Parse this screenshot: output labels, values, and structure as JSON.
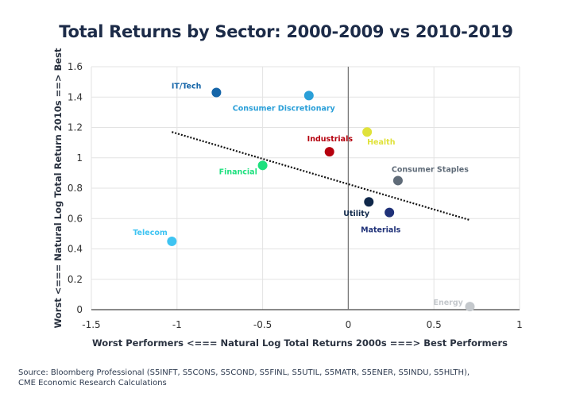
{
  "chart_data": {
    "type": "scatter",
    "title": "Total Returns by Sector: 2000-2009 vs 2010-2019",
    "xlabel": "Worst Performers <=== Natural Log Total Returns 2000s ===> Best Performers",
    "ylabel": "Worst <=== Natural Log Total Return 2010s ==> Best",
    "xlim": [
      -1.5,
      1
    ],
    "ylim": [
      0,
      1.6
    ],
    "xticks": [
      "-1.5",
      "-1",
      "-0.5",
      "0",
      "0.5",
      "1"
    ],
    "yticks": [
      "0",
      "0.2",
      "0.4",
      "0.6",
      "0.8",
      "1",
      "1.2",
      "1.4",
      "1.6"
    ],
    "xtick_values": [
      -1.5,
      -1,
      -0.5,
      0,
      0.5,
      1
    ],
    "ytick_values": [
      0,
      0.2,
      0.4,
      0.6,
      0.8,
      1,
      1.2,
      1.4,
      1.6
    ],
    "grid": true,
    "points": [
      {
        "name": "IT/Tech",
        "x": -0.77,
        "y": 1.43,
        "color": "#1565a8",
        "label_pos": "upper-left"
      },
      {
        "name": "Consumer Discretionary",
        "x": -0.23,
        "y": 1.41,
        "color": "#2a9fd8",
        "label_pos": "below"
      },
      {
        "name": "Industrials",
        "x": -0.11,
        "y": 1.04,
        "color": "#b5000e",
        "label_pos": "upper-left"
      },
      {
        "name": "Health",
        "x": 0.11,
        "y": 1.17,
        "color": "#e0e23a",
        "label_pos": "below-right"
      },
      {
        "name": "Financial",
        "x": -0.5,
        "y": 0.95,
        "color": "#1fe07f",
        "label_pos": "below-left"
      },
      {
        "name": "Consumer Staples",
        "x": 0.29,
        "y": 0.85,
        "color": "#5f6b78",
        "label_pos": "above"
      },
      {
        "name": "Utility",
        "x": 0.12,
        "y": 0.71,
        "color": "#10284a",
        "label_pos": "below-left"
      },
      {
        "name": "Materials",
        "x": 0.24,
        "y": 0.64,
        "color": "#1f3178",
        "label_pos": "below"
      },
      {
        "name": "Telecom",
        "x": -1.03,
        "y": 0.45,
        "color": "#3fc4f2",
        "label_pos": "upper-left"
      },
      {
        "name": "Energy",
        "x": 0.71,
        "y": 0.02,
        "color": "#c4c8cc",
        "label_pos": "left"
      }
    ],
    "trendline": {
      "style": "dotted",
      "color": "#111111",
      "x": [
        -1.03,
        0.71
      ],
      "y": [
        1.17,
        0.59
      ]
    }
  },
  "footer": {
    "source_line1": "Source: Bloomberg Professional (S5INFT, S5CONS, S5COND, S5FINL, S5UTIL, S5MATR, S5ENER, S5INDU, S5HLTH),",
    "source_line2": "CME Economic Research Calculations"
  }
}
